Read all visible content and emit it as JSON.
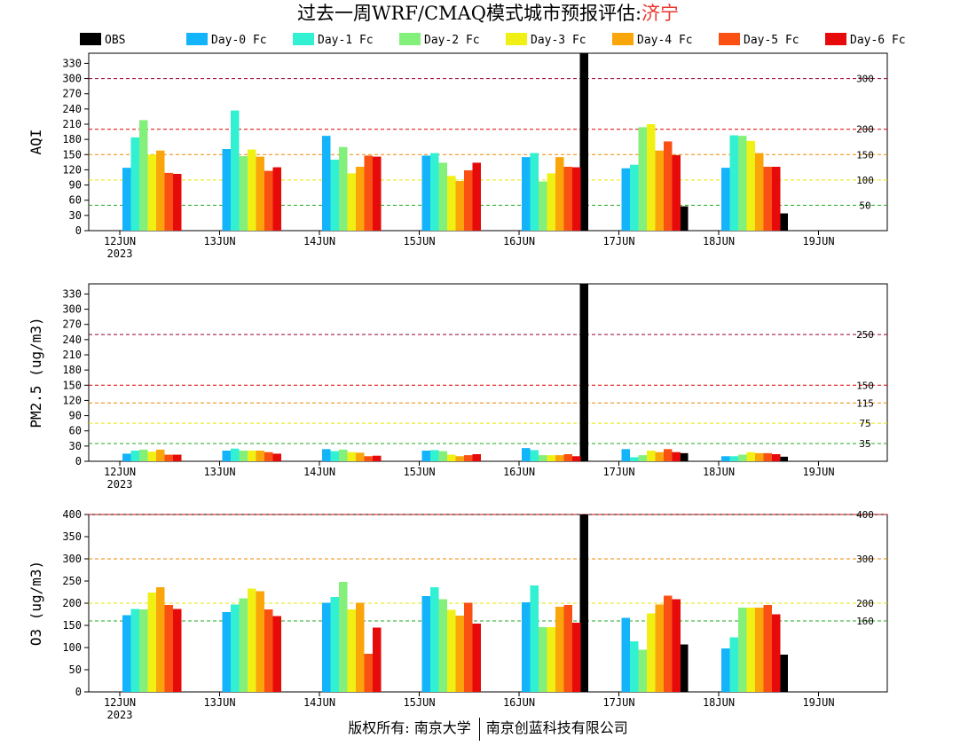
{
  "title": {
    "main": "过去一周WRF/CMAQ模式城市预报评估:",
    "city": "济宁"
  },
  "footer": {
    "left": "版权所有: 南京大学",
    "right": "南京创蓝科技有限公司"
  },
  "legend": [
    {
      "label": "OBS",
      "color": "#000000"
    },
    {
      "label": "Day-0 Fc",
      "color": "#14b4fa"
    },
    {
      "label": "Day-1 Fc",
      "color": "#32f0d2"
    },
    {
      "label": "Day-2 Fc",
      "color": "#82f07a"
    },
    {
      "label": "Day-3 Fc",
      "color": "#f0f014"
    },
    {
      "label": "Day-4 Fc",
      "color": "#faa50a"
    },
    {
      "label": "Day-5 Fc",
      "color": "#fa5014"
    },
    {
      "label": "Day-6 Fc",
      "color": "#e60a0a"
    }
  ],
  "chart_data": [
    {
      "type": "bar",
      "ylabel": "AQI",
      "ylim": [
        0,
        350
      ],
      "yticks": [
        0,
        30,
        60,
        90,
        120,
        150,
        180,
        210,
        240,
        270,
        300,
        330
      ],
      "categories": [
        "12JUN",
        "13JUN",
        "14JUN",
        "15JUN",
        "16JUN",
        "17JUN",
        "18JUN",
        "19JUN"
      ],
      "year_label": "2023",
      "thresholds": [
        {
          "value": 50,
          "label": "50",
          "color": "#22aa22"
        },
        {
          "value": 100,
          "label": "100",
          "color": "#e6e600"
        },
        {
          "value": 150,
          "label": "150",
          "color": "#ee8800"
        },
        {
          "value": 200,
          "label": "200",
          "color": "#dd0000"
        },
        {
          "value": 300,
          "label": "300",
          "color": "#990033"
        }
      ],
      "series": [
        {
          "name": "OBS",
          "values": [
            null,
            null,
            null,
            null,
            null,
            350,
            48,
            34
          ]
        },
        {
          "name": "Day-0 Fc",
          "values": [
            124,
            161,
            187,
            148,
            145,
            123,
            124,
            null
          ]
        },
        {
          "name": "Day-1 Fc",
          "values": [
            184,
            237,
            140,
            153,
            153,
            130,
            188,
            null
          ]
        },
        {
          "name": "Day-2 Fc",
          "values": [
            218,
            147,
            165,
            134,
            97,
            204,
            187,
            null
          ]
        },
        {
          "name": "Day-3 Fc",
          "values": [
            150,
            160,
            113,
            108,
            113,
            210,
            177,
            null
          ]
        },
        {
          "name": "Day-4 Fc",
          "values": [
            158,
            146,
            126,
            98,
            145,
            158,
            153,
            null
          ]
        },
        {
          "name": "Day-5 Fc",
          "values": [
            114,
            118,
            148,
            119,
            126,
            176,
            126,
            null
          ]
        },
        {
          "name": "Day-6 Fc",
          "values": [
            112,
            125,
            146,
            134,
            125,
            149,
            126,
            null
          ]
        }
      ]
    },
    {
      "type": "bar",
      "ylabel": "PM2.5 (ug/m3)",
      "ylim": [
        0,
        350
      ],
      "yticks": [
        0,
        30,
        60,
        90,
        120,
        150,
        180,
        210,
        240,
        270,
        300,
        330
      ],
      "categories": [
        "12JUN",
        "13JUN",
        "14JUN",
        "15JUN",
        "16JUN",
        "17JUN",
        "18JUN",
        "19JUN"
      ],
      "year_label": "2023",
      "thresholds": [
        {
          "value": 35,
          "label": "35",
          "color": "#22aa22"
        },
        {
          "value": 75,
          "label": "75",
          "color": "#e6e600"
        },
        {
          "value": 115,
          "label": "115",
          "color": "#ee8800"
        },
        {
          "value": 150,
          "label": "150",
          "color": "#dd0000"
        },
        {
          "value": 250,
          "label": "250",
          "color": "#990033"
        }
      ],
      "series": [
        {
          "name": "OBS",
          "values": [
            null,
            null,
            null,
            null,
            null,
            350,
            16,
            9
          ]
        },
        {
          "name": "Day-0 Fc",
          "values": [
            15,
            21,
            24,
            21,
            26,
            24,
            10,
            null
          ]
        },
        {
          "name": "Day-1 Fc",
          "values": [
            21,
            25,
            20,
            22,
            22,
            8,
            10,
            null
          ]
        },
        {
          "name": "Day-2 Fc",
          "values": [
            23,
            21,
            23,
            20,
            12,
            12,
            13,
            null
          ]
        },
        {
          "name": "Day-3 Fc",
          "values": [
            19,
            21,
            18,
            13,
            12,
            21,
            18,
            null
          ]
        },
        {
          "name": "Day-4 Fc",
          "values": [
            23,
            21,
            17,
            10,
            12,
            18,
            16,
            null
          ]
        },
        {
          "name": "Day-5 Fc",
          "values": [
            13,
            18,
            10,
            12,
            14,
            24,
            16,
            null
          ]
        },
        {
          "name": "Day-6 Fc",
          "values": [
            13,
            15,
            11,
            14,
            10,
            18,
            14,
            null
          ]
        }
      ]
    },
    {
      "type": "bar",
      "ylabel": "O3 (ug/m3)",
      "ylim": [
        0,
        400
      ],
      "yticks": [
        0,
        50,
        100,
        150,
        200,
        250,
        300,
        350,
        400
      ],
      "categories": [
        "12JUN",
        "13JUN",
        "14JUN",
        "15JUN",
        "16JUN",
        "17JUN",
        "18JUN",
        "19JUN"
      ],
      "year_label": "2023",
      "thresholds": [
        {
          "value": 160,
          "label": "160",
          "color": "#22aa22"
        },
        {
          "value": 200,
          "label": "200",
          "color": "#e6e600"
        },
        {
          "value": 300,
          "label": "300",
          "color": "#ee8800"
        },
        {
          "value": 400,
          "label": "400",
          "color": "#dd0000"
        }
      ],
      "series": [
        {
          "name": "OBS",
          "values": [
            null,
            null,
            null,
            null,
            null,
            400,
            107,
            84
          ]
        },
        {
          "name": "Day-0 Fc",
          "values": [
            173,
            180,
            201,
            216,
            202,
            167,
            98,
            null
          ]
        },
        {
          "name": "Day-1 Fc",
          "values": [
            187,
            197,
            214,
            236,
            240,
            114,
            123,
            null
          ]
        },
        {
          "name": "Day-2 Fc",
          "values": [
            186,
            211,
            248,
            209,
            146,
            95,
            190,
            null
          ]
        },
        {
          "name": "Day-3 Fc",
          "values": [
            224,
            233,
            186,
            185,
            146,
            177,
            190,
            null
          ]
        },
        {
          "name": "Day-4 Fc",
          "values": [
            236,
            227,
            201,
            172,
            192,
            197,
            190,
            null
          ]
        },
        {
          "name": "Day-5 Fc",
          "values": [
            196,
            186,
            86,
            201,
            196,
            217,
            196,
            null
          ]
        },
        {
          "name": "Day-6 Fc",
          "values": [
            187,
            171,
            145,
            154,
            156,
            209,
            175,
            null
          ]
        }
      ]
    }
  ]
}
